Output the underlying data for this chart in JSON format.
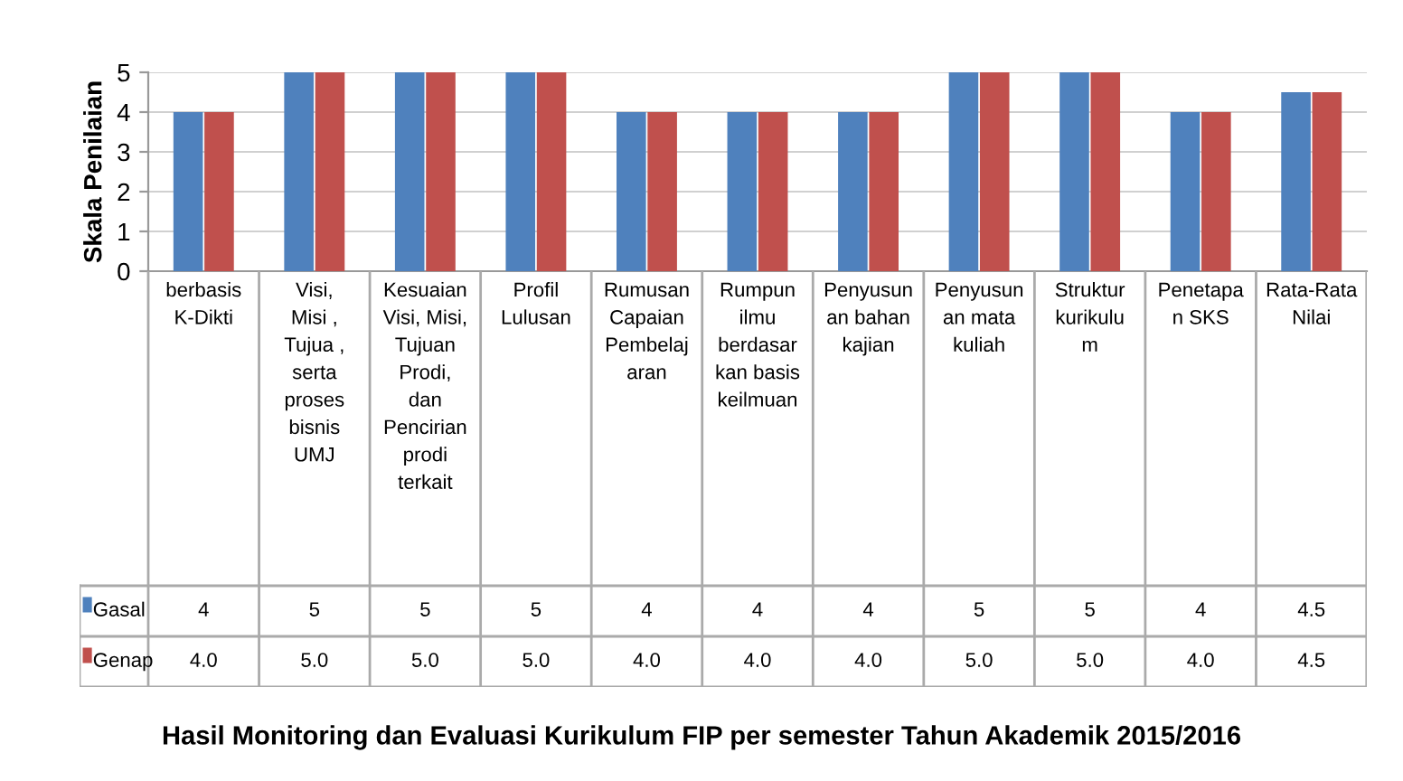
{
  "chart_data": {
    "type": "bar",
    "title": "Hasil Monitoring dan Evaluasi Kurikulum FIP per semester Tahun Akademik 2015/2016",
    "ylabel": "Skala Penilaian",
    "categories": [
      "berbasis\nK-Dikti",
      "Visi,\nMisi ,\nTujua ,\nserta\nproses\nbisnis\nUMJ",
      "Kesuaian\nVisi, Misi,\nTujuan\nProdi,\ndan\nPencirian\nprodi\nterkait",
      "Profil\nLulusan",
      "Rumusan\nCapaian\nPembelaj\naran",
      "Rumpun\nilmu\nberdasar\nkan basis\nkeilmuan",
      "Penyusun\nan bahan\nkajian",
      "Penyusun\nan mata\nkuliah",
      "Struktur\nkurikulu\nm",
      "Penetapa\nn SKS",
      "Rata-Rata\nNilai"
    ],
    "series": [
      {
        "name": "Gasal",
        "color": "#4f81bd",
        "values": [
          4,
          5,
          5,
          5,
          4,
          4,
          4,
          5,
          5,
          4,
          4.5
        ],
        "value_labels": [
          "4",
          "5",
          "5",
          "5",
          "4",
          "4",
          "4",
          "5",
          "5",
          "4",
          "4.5"
        ]
      },
      {
        "name": "Genap",
        "color": "#c0504d",
        "values": [
          4,
          5,
          5,
          5,
          4,
          4,
          4,
          5,
          5,
          4,
          4.5
        ],
        "value_labels": [
          "4.0",
          "5.0",
          "5.0",
          "5.0",
          "4.0",
          "4.0",
          "4.0",
          "5.0",
          "5.0",
          "4.0",
          "4.5"
        ]
      }
    ],
    "ylim": [
      0,
      5
    ],
    "yticks": [
      0,
      1,
      2,
      3,
      4,
      5
    ],
    "grid": "y",
    "legend": "bottom"
  }
}
